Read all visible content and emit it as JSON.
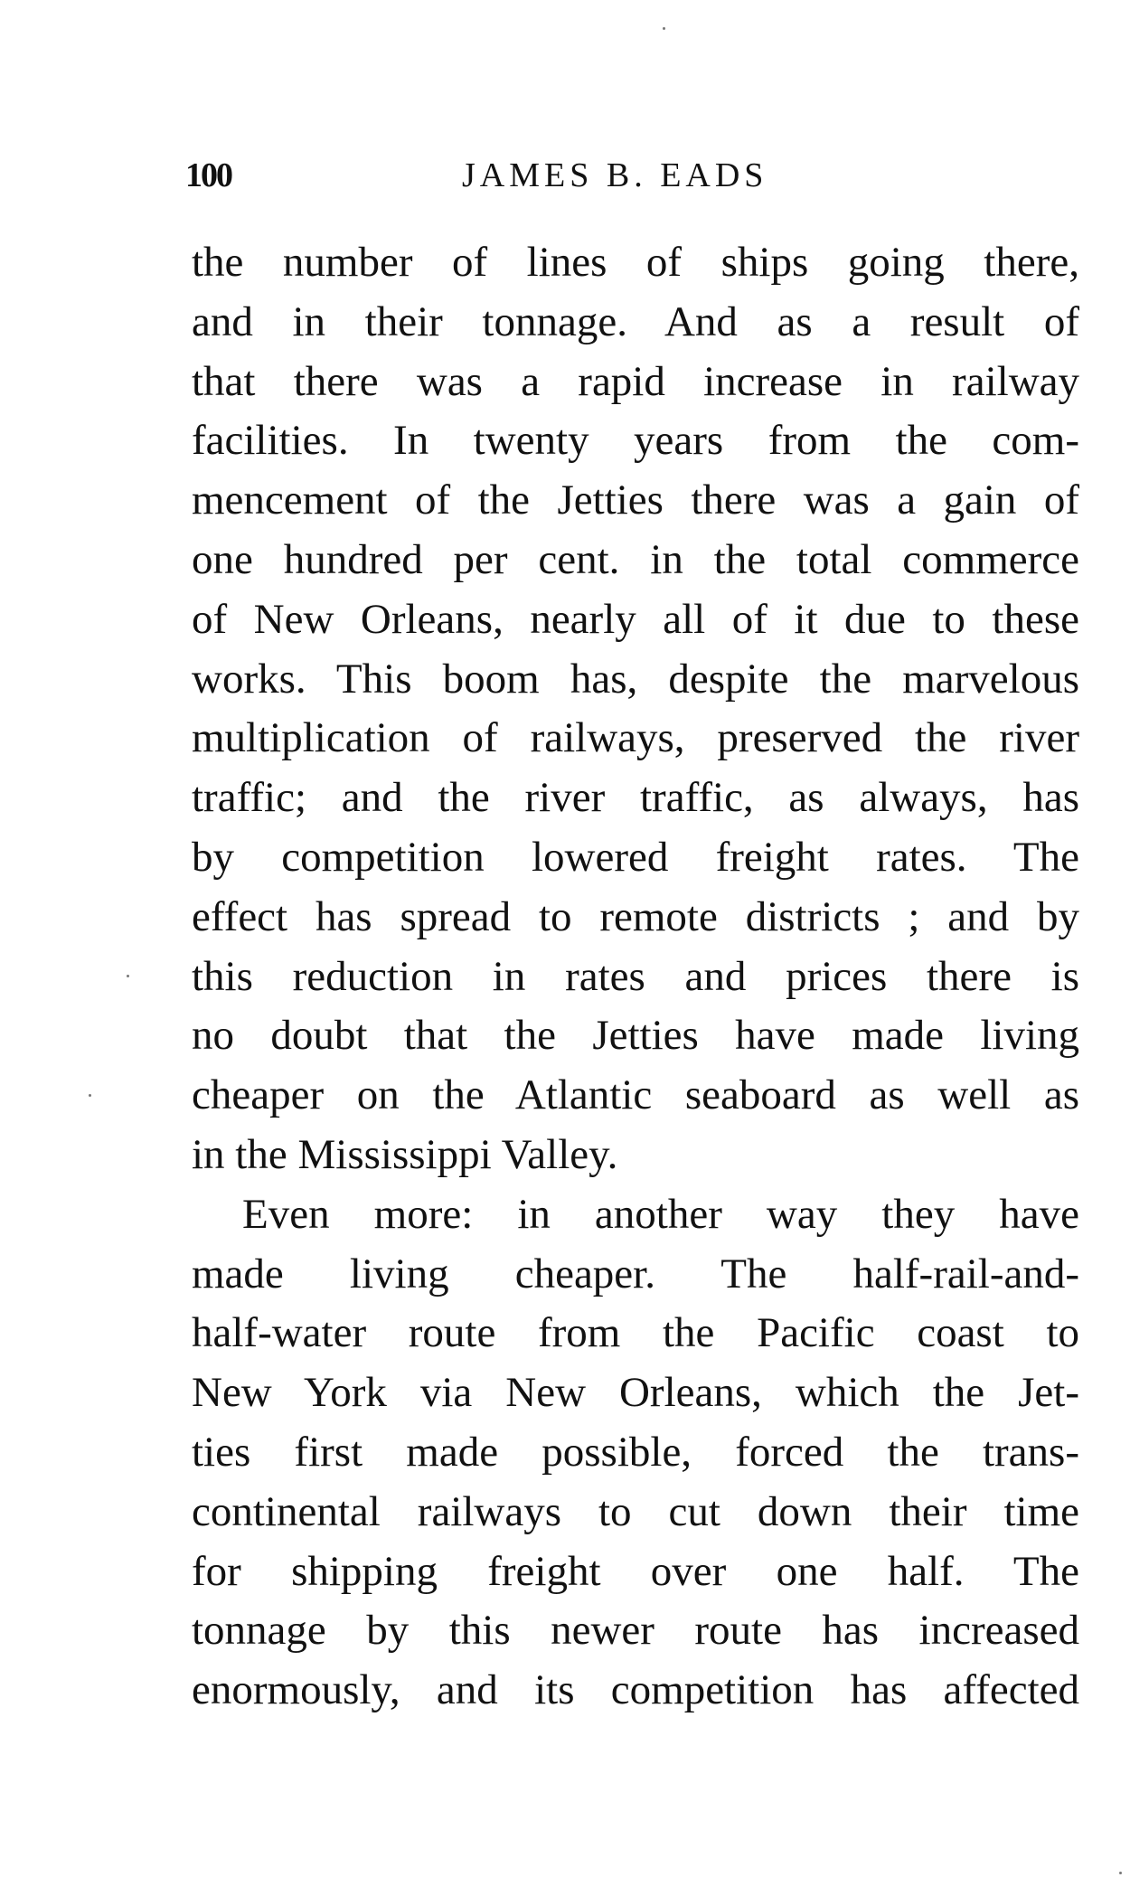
{
  "header": {
    "page_number": "100",
    "running_title": "JAMES B. EADS"
  },
  "lines": [
    "the number of lines of ships going there,",
    "and in their tonnage.  And as a result of",
    "that there was a rapid increase in railway",
    "facilities.  In twenty years from the com-",
    "mencement of the Jetties there was a gain of",
    "one hundred per cent. in the total commerce",
    "of New Orleans, nearly all of it due to these",
    "works.  This boom has, despite the marvelous",
    "multiplication of railways, preserved the river",
    "traffic; and the river traffic, as always, has",
    "by competition lowered freight rates.  The",
    "effect has spread to remote districts ; and by",
    "this reduction in rates and prices there is",
    "no doubt that the Jetties have made living",
    "cheaper on the Atlantic seaboard as well as",
    "in the Mississippi Valley.",
    "Even more: in another way they have",
    "made living cheaper.  The half-rail-and-",
    "half-water route from the Pacific coast to",
    "New York via New Orleans, which the Jet-",
    "ties first made possible, forced the trans-",
    "continental railways to cut down their time",
    "for shipping freight over one half.  The",
    "tonnage by this newer route has increased",
    "enormously, and its competition has affected"
  ]
}
